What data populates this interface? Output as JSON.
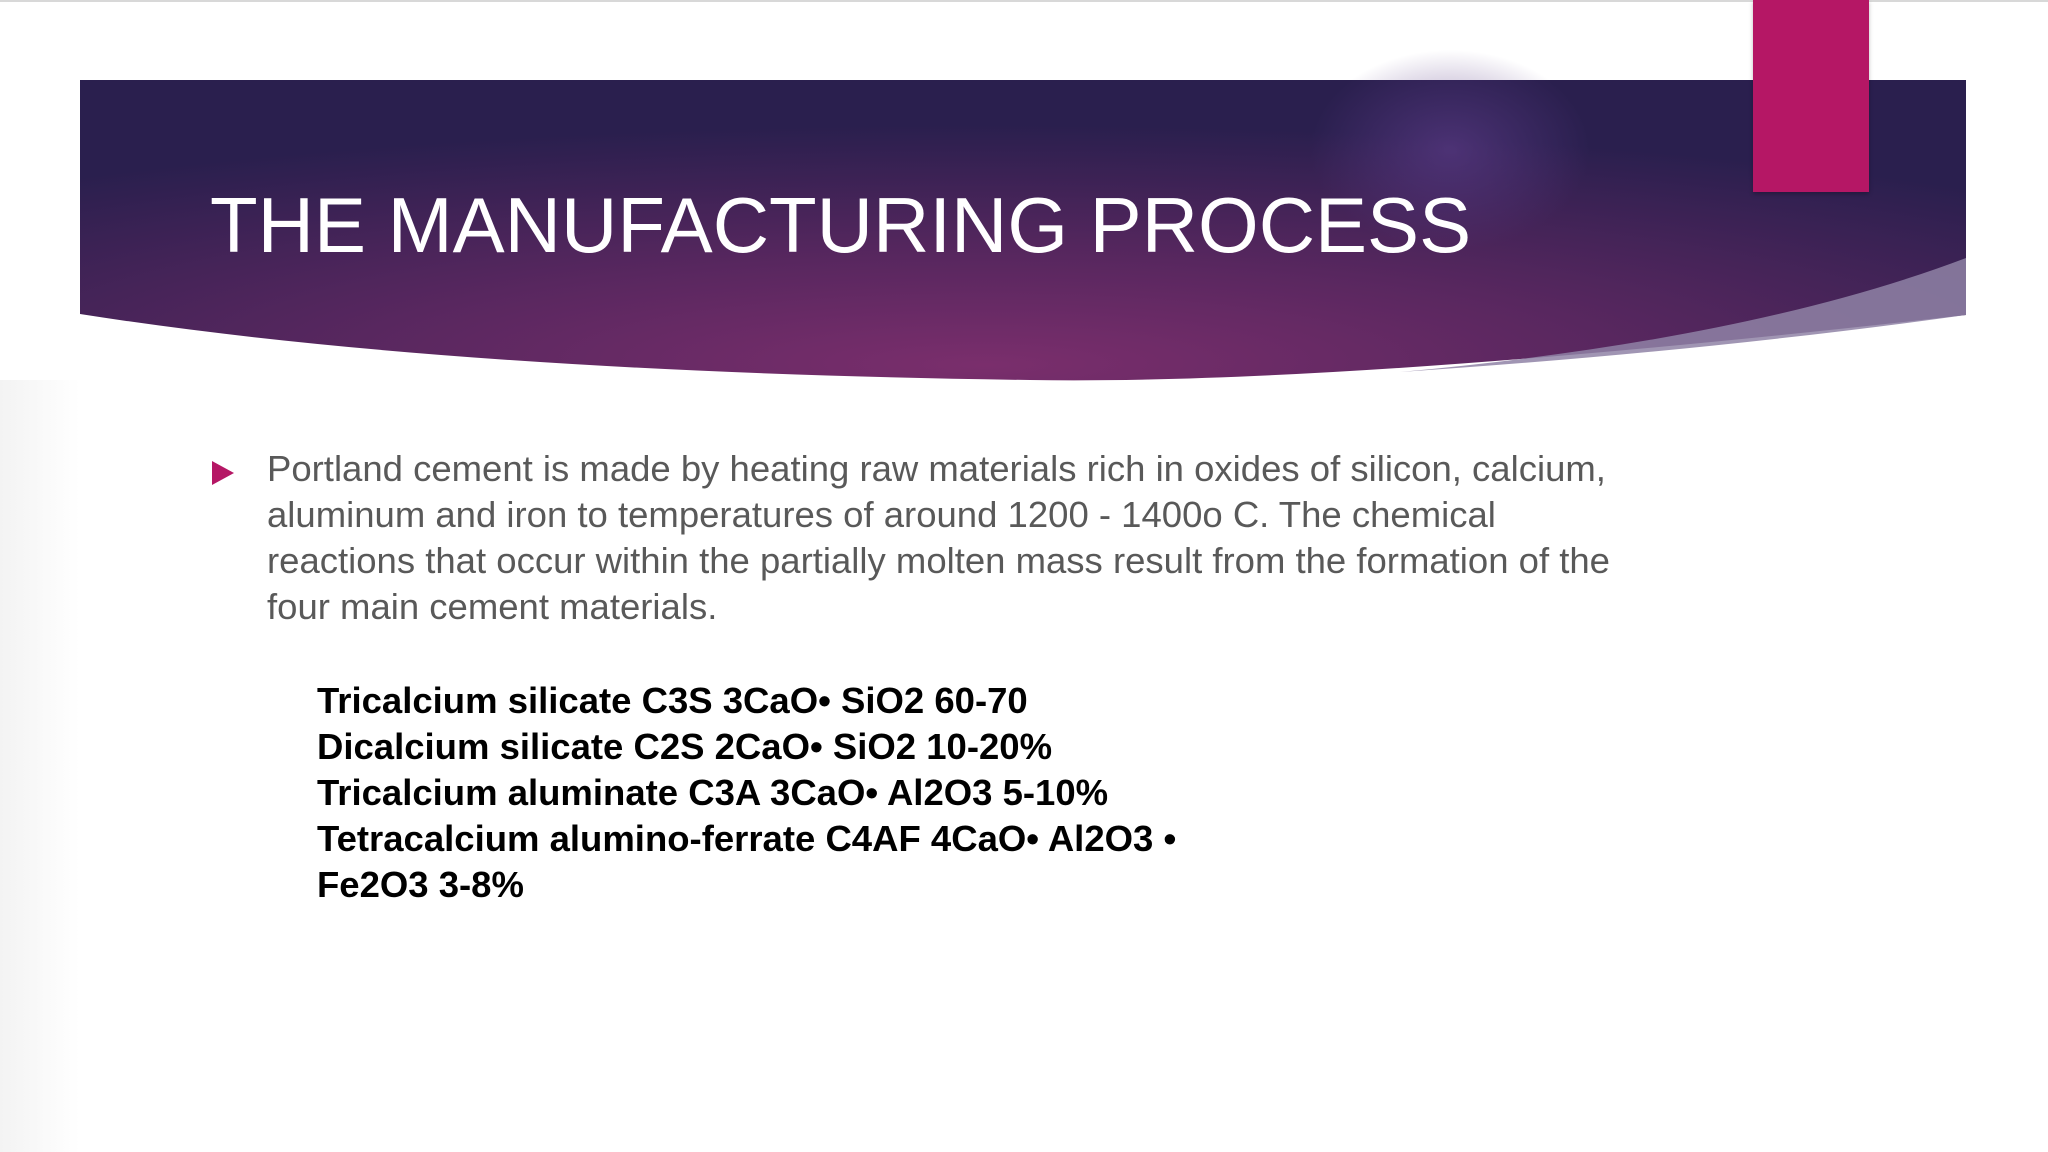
{
  "slide": {
    "title": "THE MANUFACTURING PROCESS",
    "bullet": "Portland cement is made by heating raw materials rich in oxides of silicon, calcium, aluminum and iron to temperatures of around 1200 - 1400o C. The chemical reactions that occur within the partially molten mass result from the formation of the four main cement materials.",
    "compounds": [
      "Tricalcium silicate C3S 3CaO• SiO2 60-70",
      "Dicalcium silicate C2S 2CaO• SiO2 10-20%",
      "Tricalcium aluminate C3A 3CaO• Al2O3 5-10%",
      "Tetracalcium alumino-ferrate C4AF 4CaO• Al2O3 •",
      "Fe2O3 3-8%"
    ]
  },
  "colors": {
    "banner_dark": "#2b1f4f",
    "banner_mid": "#6a2a66",
    "accent": "#b51765",
    "body_text": "#595959"
  },
  "icons": {
    "bullet": "triangle-right-icon"
  }
}
